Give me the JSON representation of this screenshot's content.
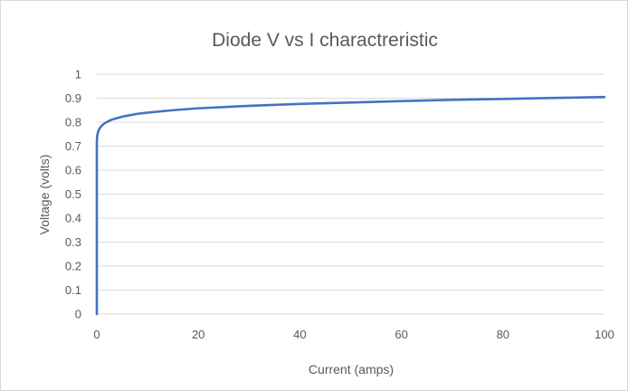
{
  "chart_data": {
    "type": "line",
    "title": "Diode V vs I charactreristic",
    "xlabel": "Current (amps)",
    "ylabel": "Voltage (volts)",
    "xlim": [
      0,
      100
    ],
    "ylim": [
      0,
      1
    ],
    "x_ticks": [
      0,
      20,
      40,
      60,
      80,
      100
    ],
    "y_ticks": [
      0,
      0.1,
      0.2,
      0.3,
      0.4,
      0.5,
      0.6,
      0.7,
      0.8,
      0.9,
      1
    ],
    "x_tick_labels": [
      "0",
      "20",
      "40",
      "60",
      "80",
      "100"
    ],
    "y_tick_labels": [
      "0",
      "0.1",
      "0.2",
      "0.3",
      "0.4",
      "0.5",
      "0.6",
      "0.7",
      "0.8",
      "0.9",
      "1"
    ],
    "grid": true,
    "legend": "none",
    "series": [
      {
        "color": "#4472c4",
        "x": [
          0,
          0.001,
          0.005,
          0.01,
          0.05,
          0.1,
          0.2,
          0.3,
          0.5,
          0.8,
          1,
          1.5,
          2,
          3,
          5,
          8,
          10,
          15,
          20,
          30,
          40,
          50,
          60,
          70,
          80,
          90,
          100
        ],
        "y": [
          0,
          0.7,
          0.71,
          0.72,
          0.735,
          0.745,
          0.755,
          0.763,
          0.772,
          0.781,
          0.786,
          0.795,
          0.801,
          0.811,
          0.823,
          0.835,
          0.84,
          0.85,
          0.858,
          0.868,
          0.876,
          0.882,
          0.888,
          0.893,
          0.897,
          0.901,
          0.905
        ]
      }
    ]
  }
}
